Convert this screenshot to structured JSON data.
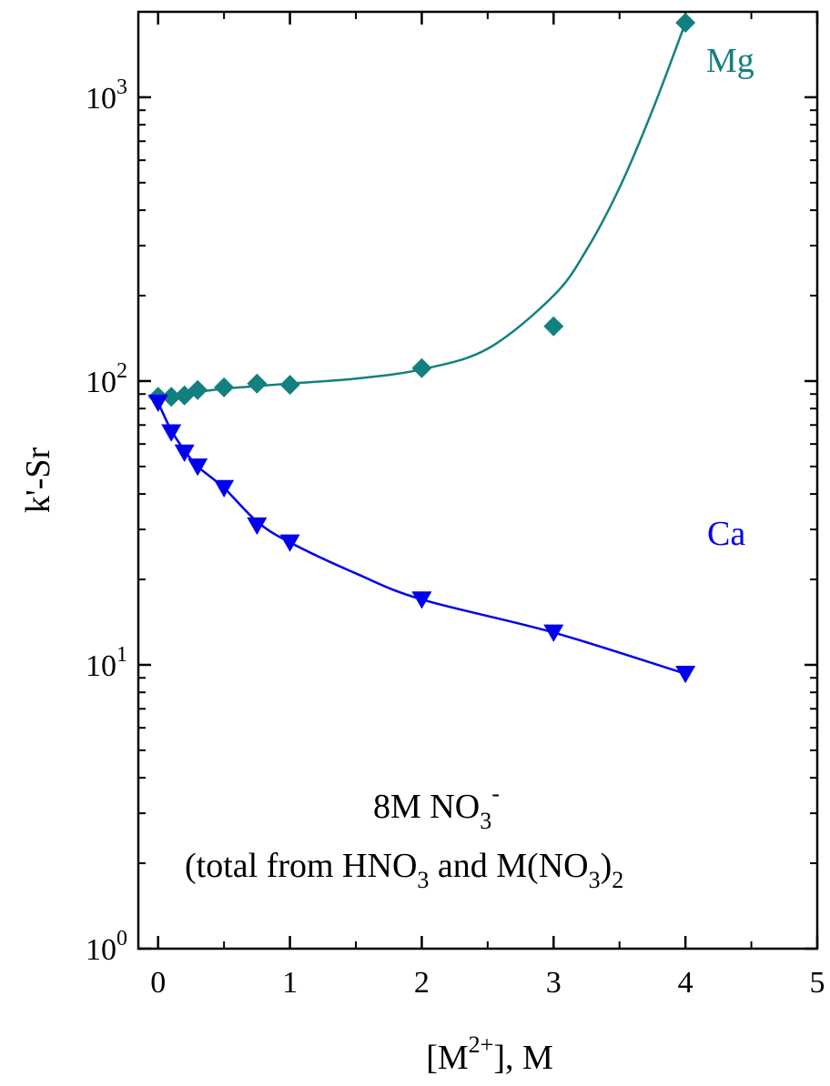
{
  "chart_data": {
    "type": "scatter",
    "x_axis": {
      "label_base": "[M",
      "label_sup": "2+",
      "label_tail": "], M",
      "range": [
        -0.15,
        5
      ],
      "ticks": [
        0,
        1,
        2,
        3,
        4,
        5
      ],
      "tick_labels": [
        "0",
        "1",
        "2",
        "3",
        "4",
        "5"
      ]
    },
    "y_axis": {
      "label": "k'-Sr",
      "scale": "log",
      "range": [
        1,
        2000
      ],
      "ticks": [
        1,
        10,
        100,
        1000
      ],
      "tick_labels": [
        {
          "base": "10",
          "exp": "0"
        },
        {
          "base": "10",
          "exp": "1"
        },
        {
          "base": "10",
          "exp": "2"
        },
        {
          "base": "10",
          "exp": "3"
        }
      ]
    },
    "series": [
      {
        "name": "Mg",
        "color": "#138080",
        "marker": "diamond",
        "points": [
          {
            "x": 0,
            "y": 88
          },
          {
            "x": 0.1,
            "y": 88
          },
          {
            "x": 0.2,
            "y": 89
          },
          {
            "x": 0.3,
            "y": 93
          },
          {
            "x": 0.5,
            "y": 95
          },
          {
            "x": 0.75,
            "y": 98
          },
          {
            "x": 1,
            "y": 97
          },
          {
            "x": 2,
            "y": 111
          },
          {
            "x": 3,
            "y": 156
          },
          {
            "x": 4,
            "y": 1830
          }
        ],
        "fit": [
          {
            "x": 0,
            "y": 88
          },
          {
            "x": 0.25,
            "y": 91
          },
          {
            "x": 0.5,
            "y": 94
          },
          {
            "x": 0.75,
            "y": 96
          },
          {
            "x": 1,
            "y": 98
          },
          {
            "x": 1.5,
            "y": 102
          },
          {
            "x": 2,
            "y": 110
          },
          {
            "x": 2.5,
            "y": 130
          },
          {
            "x": 3,
            "y": 200
          },
          {
            "x": 3.25,
            "y": 290
          },
          {
            "x": 3.5,
            "y": 480
          },
          {
            "x": 3.75,
            "y": 900
          },
          {
            "x": 4,
            "y": 1830
          }
        ]
      },
      {
        "name": "Ca",
        "color": "#0000ee",
        "marker": "triangle-down",
        "points": [
          {
            "x": 0,
            "y": 84
          },
          {
            "x": 0.1,
            "y": 66
          },
          {
            "x": 0.2,
            "y": 56
          },
          {
            "x": 0.3,
            "y": 50
          },
          {
            "x": 0.5,
            "y": 42
          },
          {
            "x": 0.75,
            "y": 31
          },
          {
            "x": 1,
            "y": 27
          },
          {
            "x": 2,
            "y": 17
          },
          {
            "x": 3,
            "y": 13
          },
          {
            "x": 4,
            "y": 9.3
          }
        ],
        "fit": [
          {
            "x": 0,
            "y": 84
          },
          {
            "x": 0.1,
            "y": 67
          },
          {
            "x": 0.2,
            "y": 57
          },
          {
            "x": 0.3,
            "y": 50
          },
          {
            "x": 0.5,
            "y": 42
          },
          {
            "x": 0.75,
            "y": 32
          },
          {
            "x": 1,
            "y": 27
          },
          {
            "x": 1.5,
            "y": 21
          },
          {
            "x": 2,
            "y": 17
          },
          {
            "x": 3,
            "y": 13
          },
          {
            "x": 4,
            "y": 9.3
          }
        ]
      }
    ],
    "annotation": {
      "line1_base": "8M NO",
      "line1_sub": "3",
      "line1_sup": "-",
      "line2_a": "(total from HNO",
      "line2_sub1": "3",
      "line2_b": " and M(NO",
      "line2_sub2": "3",
      "line2_c": ")",
      "line2_sub3": "2"
    },
    "grid": false,
    "legend": "inline labels at top-right (Mg) and right (Ca)"
  }
}
